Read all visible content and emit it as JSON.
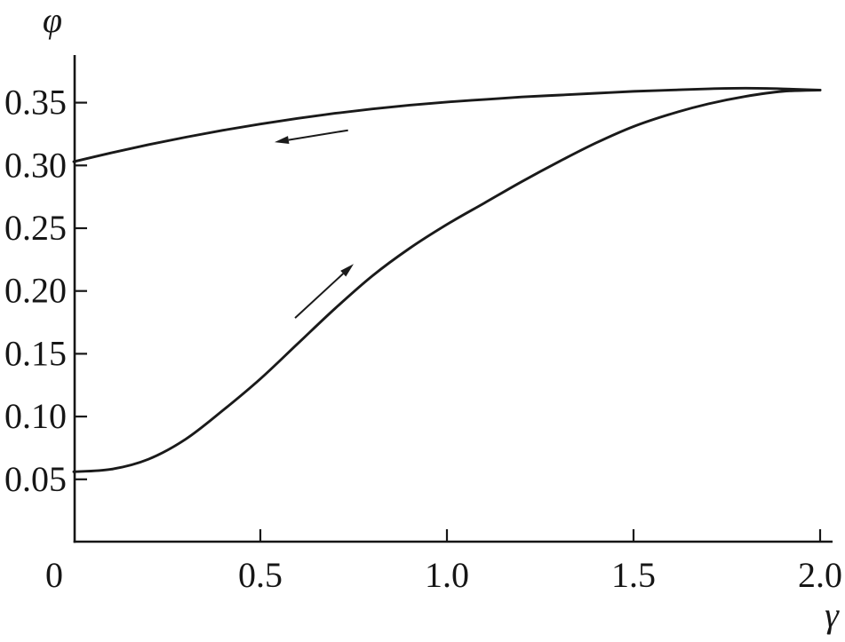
{
  "chart_data": {
    "type": "line",
    "title": "",
    "subtitle": "",
    "xlabel": "γ",
    "ylabel": "φ",
    "xlim": [
      0,
      2.03
    ],
    "ylim": [
      0,
      0.388
    ],
    "grid": false,
    "legend": null,
    "background": "#ffffff",
    "axis_color": "#161616",
    "curve_color": "#1a1a1a",
    "arrow_color": "#1a1a1a",
    "x_ticks": [
      {
        "value": 0.0,
        "label": "0"
      },
      {
        "value": 0.5,
        "label": "0.5"
      },
      {
        "value": 1.0,
        "label": "1.0"
      },
      {
        "value": 1.5,
        "label": "1.5"
      },
      {
        "value": 2.0,
        "label": "2.0"
      }
    ],
    "y_ticks": [
      {
        "value": 0.05,
        "label": "0.05"
      },
      {
        "value": 0.1,
        "label": "0.10"
      },
      {
        "value": 0.15,
        "label": "0.15"
      },
      {
        "value": 0.2,
        "label": "0.20"
      },
      {
        "value": 0.25,
        "label": "0.25"
      },
      {
        "value": 0.3,
        "label": "0.30"
      },
      {
        "value": 0.35,
        "label": "0.35"
      }
    ],
    "series": [
      {
        "name": "upper-branch-decreasing-gamma",
        "x": [
          0,
          0.1,
          0.2,
          0.3,
          0.4,
          0.5,
          0.6,
          0.7,
          0.8,
          0.9,
          1.0,
          1.1,
          1.2,
          1.3,
          1.4,
          1.5,
          1.6,
          1.7,
          1.8,
          1.9,
          2.0
        ],
        "y": [
          0.303,
          0.31,
          0.3165,
          0.3225,
          0.328,
          0.333,
          0.3375,
          0.3415,
          0.345,
          0.348,
          0.3505,
          0.3525,
          0.3545,
          0.356,
          0.3575,
          0.359,
          0.36,
          0.361,
          0.3615,
          0.361,
          0.36
        ]
      },
      {
        "name": "lower-branch-increasing-gamma",
        "x": [
          0,
          0.1,
          0.2,
          0.3,
          0.4,
          0.5,
          0.6,
          0.7,
          0.8,
          0.9,
          1.0,
          1.1,
          1.2,
          1.3,
          1.4,
          1.5,
          1.6,
          1.7,
          1.8,
          1.9,
          2.0
        ],
        "y": [
          0.056,
          0.058,
          0.066,
          0.082,
          0.105,
          0.13,
          0.158,
          0.186,
          0.212,
          0.234,
          0.253,
          0.27,
          0.287,
          0.303,
          0.318,
          0.331,
          0.341,
          0.349,
          0.355,
          0.359,
          0.36
        ]
      }
    ],
    "annotations": [
      {
        "type": "arrow",
        "name": "upper-branch-arrow",
        "direction": "left",
        "from": [
          0.735,
          0.328
        ],
        "to": [
          0.538,
          0.3185
        ]
      },
      {
        "type": "arrow",
        "name": "lower-branch-arrow",
        "direction": "up-right",
        "from": [
          0.593,
          0.1785
        ],
        "to": [
          0.75,
          0.2215
        ]
      }
    ]
  }
}
